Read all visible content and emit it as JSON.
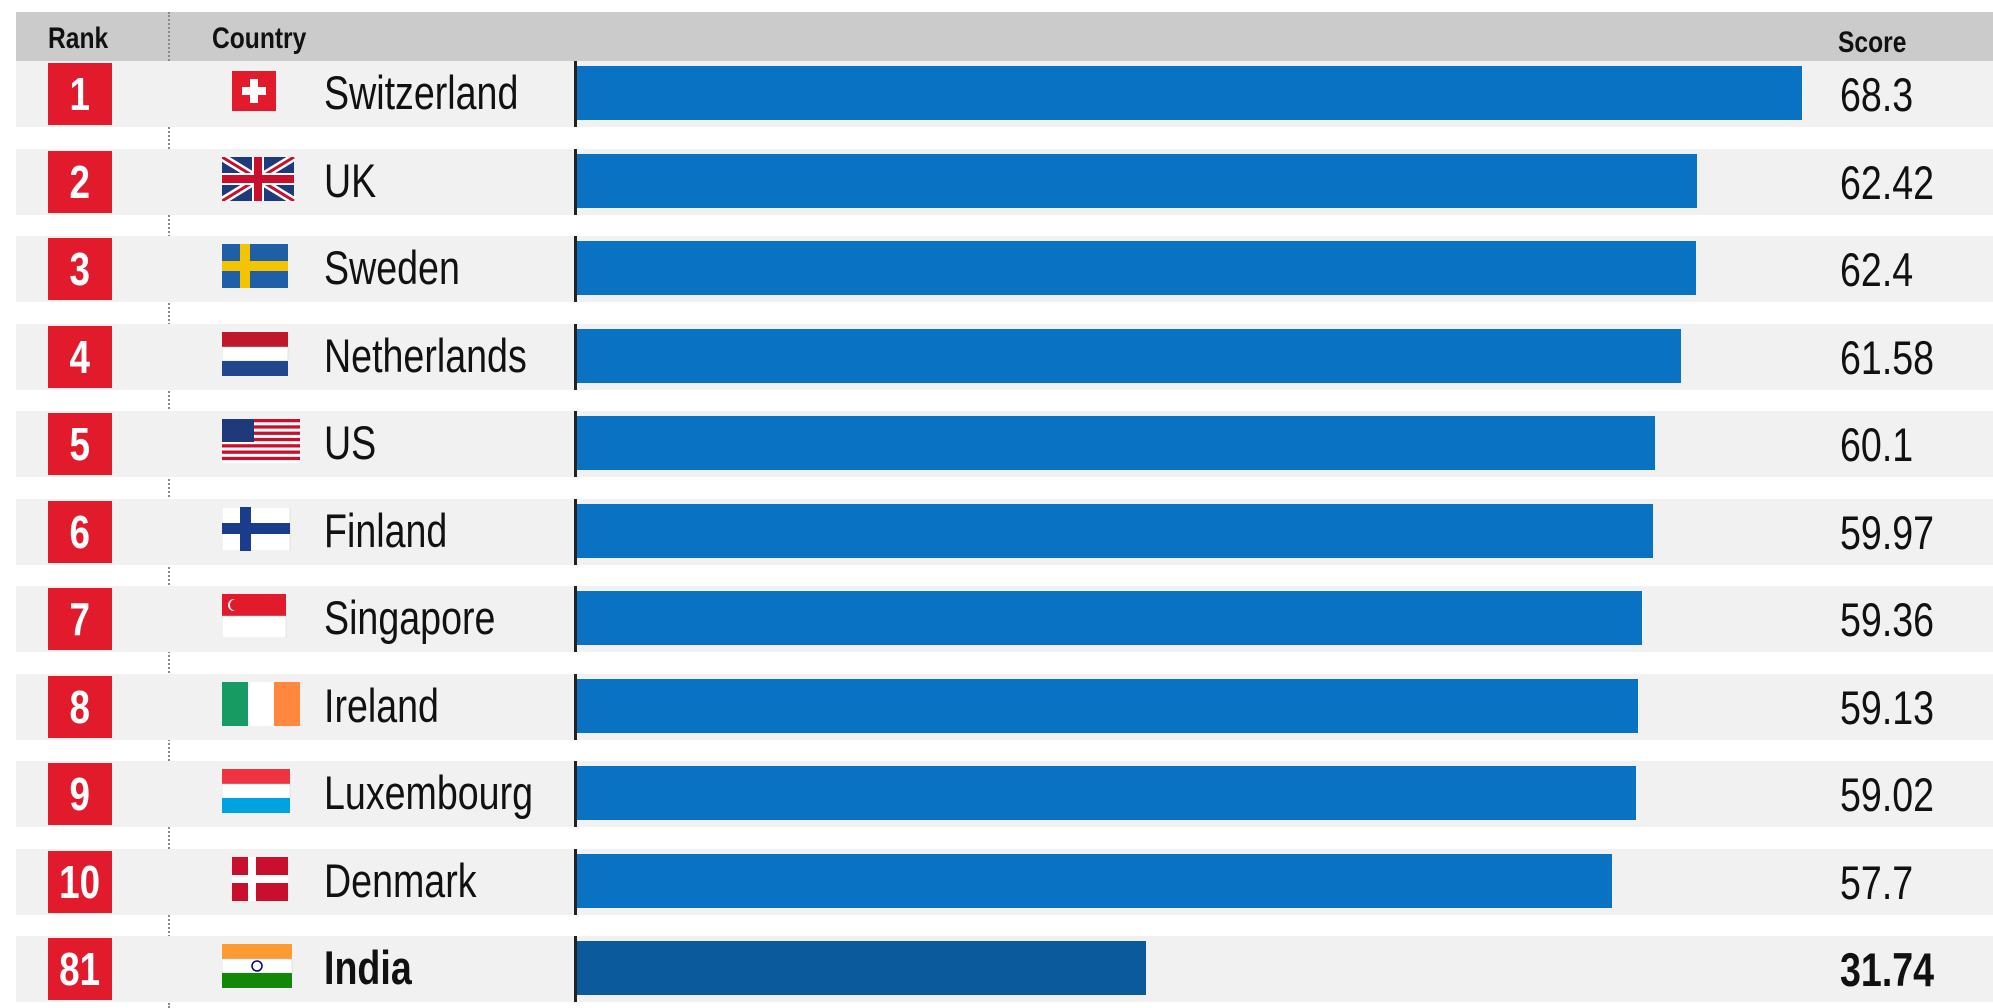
{
  "header": {
    "rank_label": "Rank",
    "country_label": "Country",
    "score_label": "Score"
  },
  "colors": {
    "bar": "#0a72c2",
    "highlight_bar": "#0a5a9c",
    "rank_box": "#e21b2c",
    "header_bg": "#cbcbcb",
    "row_bg": "#f1f1f1"
  },
  "chart_data": {
    "type": "bar",
    "orientation": "horizontal",
    "xlim": [
      0,
      68.3
    ],
    "categories": [
      "Switzerland",
      "UK",
      "Sweden",
      "Netherlands",
      "US",
      "Finland",
      "Singapore",
      "Ireland",
      "Luxembourg",
      "Denmark",
      "India"
    ],
    "ranks": [
      "1",
      "2",
      "3",
      "4",
      "5",
      "6",
      "7",
      "8",
      "9",
      "10",
      "81"
    ],
    "values": [
      68.3,
      62.42,
      62.4,
      61.58,
      60.1,
      59.97,
      59.36,
      59.13,
      59.02,
      57.7,
      31.74
    ],
    "value_labels": [
      "68.3",
      "62.42",
      "62.4",
      "61.58",
      "60.1",
      "59.97",
      "59.36",
      "59.13",
      "59.02",
      "57.7",
      "31.74"
    ],
    "highlighted": "India",
    "flags": [
      "switzerland-flag",
      "uk-flag",
      "sweden-flag",
      "netherlands-flag",
      "us-flag",
      "finland-flag",
      "singapore-flag",
      "ireland-flag",
      "luxembourg-flag",
      "denmark-flag",
      "india-flag"
    ]
  }
}
